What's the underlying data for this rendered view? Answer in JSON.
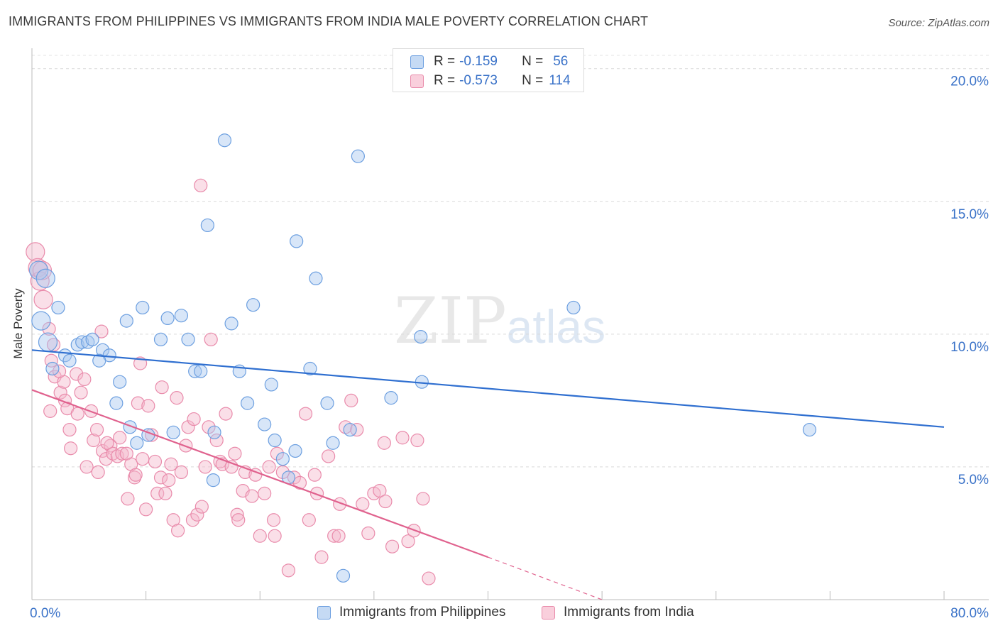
{
  "header": {
    "title": "IMMIGRANTS FROM PHILIPPINES VS IMMIGRANTS FROM INDIA MALE POVERTY CORRELATION CHART",
    "source": "Source: ZipAtlas.com"
  },
  "watermark": {
    "zip": "ZIP",
    "atlas": "atlas"
  },
  "legend": {
    "philippines": {
      "r_label": "R =",
      "r_value": "-0.159",
      "n_label": "N =",
      "n_value": "56"
    },
    "india": {
      "r_label": "R =",
      "r_value": "-0.573",
      "n_label": "N =",
      "n_value": "114"
    }
  },
  "colors": {
    "philippines_fill": "#a9c8ef",
    "philippines_stroke": "#6c9fe0",
    "philippines_line": "#2f6fd0",
    "india_fill": "#f5b8cb",
    "india_stroke": "#e98bab",
    "india_line": "#e0628e",
    "axis_text": "#3a72c8"
  },
  "chart_data": {
    "type": "scatter",
    "title": "IMMIGRANTS FROM PHILIPPINES VS IMMIGRANTS FROM INDIA MALE POVERTY CORRELATION CHART",
    "xlabel": "",
    "ylabel": "Male Poverty",
    "xlim": [
      0,
      80
    ],
    "ylim": [
      0,
      20.5
    ],
    "x_tick_labels": [
      "0.0%",
      "80.0%"
    ],
    "y_ticks": [
      5,
      10,
      15,
      20
    ],
    "y_tick_labels": [
      "5.0%",
      "10.0%",
      "15.0%",
      "20.0%"
    ],
    "grid": true,
    "legend_position": "bottom",
    "series": [
      {
        "name": "Immigrants from Philippines",
        "color": "#a9c8ef",
        "trend": {
          "x": [
            0,
            80
          ],
          "y": [
            9.4,
            6.5
          ]
        },
        "points": [
          [
            0.6,
            12.4
          ],
          [
            0.8,
            10.5
          ],
          [
            1.4,
            9.7
          ],
          [
            1.8,
            8.7
          ],
          [
            2.3,
            11.0
          ],
          [
            2.9,
            9.2
          ],
          [
            3.3,
            9.0
          ],
          [
            4.0,
            9.6
          ],
          [
            4.4,
            9.7
          ],
          [
            4.9,
            9.7
          ],
          [
            5.3,
            9.8
          ],
          [
            6.2,
            9.4
          ],
          [
            6.8,
            9.2
          ],
          [
            5.9,
            9.0
          ],
          [
            7.7,
            8.2
          ],
          [
            7.4,
            7.4
          ],
          [
            8.3,
            10.5
          ],
          [
            8.6,
            6.5
          ],
          [
            9.2,
            5.9
          ],
          [
            9.7,
            11.0
          ],
          [
            10.2,
            6.2
          ],
          [
            11.3,
            9.8
          ],
          [
            11.9,
            10.6
          ],
          [
            12.4,
            6.3
          ],
          [
            13.1,
            10.7
          ],
          [
            13.7,
            9.8
          ],
          [
            14.3,
            8.6
          ],
          [
            14.8,
            8.6
          ],
          [
            15.4,
            14.1
          ],
          [
            16.0,
            6.3
          ],
          [
            15.9,
            4.5
          ],
          [
            16.9,
            17.3
          ],
          [
            17.5,
            10.4
          ],
          [
            18.2,
            8.6
          ],
          [
            18.9,
            7.4
          ],
          [
            19.4,
            11.1
          ],
          [
            20.4,
            6.6
          ],
          [
            21.0,
            8.1
          ],
          [
            21.3,
            6.0
          ],
          [
            22.0,
            5.3
          ],
          [
            23.1,
            5.6
          ],
          [
            22.5,
            4.6
          ],
          [
            23.2,
            13.5
          ],
          [
            24.4,
            8.7
          ],
          [
            24.9,
            12.1
          ],
          [
            25.9,
            7.4
          ],
          [
            26.4,
            5.9
          ],
          [
            27.3,
            0.9
          ],
          [
            27.9,
            6.4
          ],
          [
            28.6,
            16.7
          ],
          [
            31.5,
            7.6
          ],
          [
            34.1,
            9.9
          ],
          [
            34.2,
            8.2
          ],
          [
            47.5,
            11.0
          ],
          [
            68.2,
            6.4
          ],
          [
            1.2,
            12.1
          ]
        ]
      },
      {
        "name": "Immigrants from India",
        "color": "#f5b8cb",
        "trend": {
          "x": [
            0,
            40
          ],
          "y": [
            7.9,
            1.6
          ]
        },
        "trend_dashed": {
          "x": [
            40,
            50
          ],
          "y": [
            1.6,
            0.0
          ]
        },
        "points": [
          [
            0.3,
            13.1
          ],
          [
            0.5,
            12.5
          ],
          [
            0.7,
            12.0
          ],
          [
            1.0,
            11.3
          ],
          [
            1.5,
            10.2
          ],
          [
            1.7,
            9.0
          ],
          [
            2.0,
            8.4
          ],
          [
            1.9,
            9.6
          ],
          [
            2.5,
            7.8
          ],
          [
            2.8,
            8.2
          ],
          [
            2.9,
            7.5
          ],
          [
            3.1,
            7.2
          ],
          [
            3.3,
            6.4
          ],
          [
            3.4,
            5.7
          ],
          [
            3.9,
            8.5
          ],
          [
            4.0,
            7.0
          ],
          [
            4.3,
            7.8
          ],
          [
            4.6,
            8.3
          ],
          [
            4.8,
            5.0
          ],
          [
            5.2,
            7.1
          ],
          [
            5.4,
            6.0
          ],
          [
            5.7,
            6.4
          ],
          [
            5.8,
            4.8
          ],
          [
            6.1,
            10.1
          ],
          [
            6.2,
            5.6
          ],
          [
            6.5,
            5.3
          ],
          [
            6.9,
            5.8
          ],
          [
            7.1,
            5.5
          ],
          [
            7.5,
            5.4
          ],
          [
            7.7,
            6.1
          ],
          [
            7.9,
            5.5
          ],
          [
            8.3,
            5.5
          ],
          [
            8.4,
            3.8
          ],
          [
            8.7,
            5.1
          ],
          [
            9.0,
            4.6
          ],
          [
            9.3,
            7.4
          ],
          [
            9.5,
            8.9
          ],
          [
            9.7,
            5.3
          ],
          [
            10.0,
            3.4
          ],
          [
            10.2,
            7.3
          ],
          [
            10.5,
            6.2
          ],
          [
            10.8,
            5.2
          ],
          [
            11.0,
            4.0
          ],
          [
            11.3,
            4.6
          ],
          [
            11.4,
            8.0
          ],
          [
            11.7,
            4.0
          ],
          [
            12.0,
            4.5
          ],
          [
            12.2,
            5.1
          ],
          [
            12.4,
            3.0
          ],
          [
            12.7,
            7.6
          ],
          [
            12.8,
            2.6
          ],
          [
            13.1,
            4.8
          ],
          [
            13.5,
            5.8
          ],
          [
            13.7,
            6.5
          ],
          [
            14.1,
            3.0
          ],
          [
            14.2,
            6.8
          ],
          [
            14.5,
            3.2
          ],
          [
            14.9,
            3.5
          ],
          [
            15.2,
            5.0
          ],
          [
            15.5,
            6.5
          ],
          [
            15.7,
            9.8
          ],
          [
            16.2,
            6.0
          ],
          [
            16.5,
            5.2
          ],
          [
            16.7,
            5.1
          ],
          [
            17.0,
            7.0
          ],
          [
            17.5,
            5.0
          ],
          [
            17.8,
            5.5
          ],
          [
            18.0,
            3.2
          ],
          [
            18.5,
            4.1
          ],
          [
            18.7,
            4.8
          ],
          [
            19.3,
            3.9
          ],
          [
            19.6,
            4.7
          ],
          [
            20.0,
            2.4
          ],
          [
            20.4,
            4.0
          ],
          [
            20.8,
            5.0
          ],
          [
            21.3,
            2.4
          ],
          [
            21.5,
            5.5
          ],
          [
            22.0,
            4.8
          ],
          [
            22.5,
            1.1
          ],
          [
            23.0,
            4.6
          ],
          [
            23.5,
            4.4
          ],
          [
            24.0,
            7.0
          ],
          [
            24.3,
            3.0
          ],
          [
            24.8,
            4.7
          ],
          [
            25.0,
            4.0
          ],
          [
            25.4,
            1.6
          ],
          [
            26.0,
            5.4
          ],
          [
            26.5,
            2.4
          ],
          [
            27.0,
            3.6
          ],
          [
            27.5,
            6.5
          ],
          [
            28.0,
            7.5
          ],
          [
            28.5,
            6.4
          ],
          [
            29.0,
            3.6
          ],
          [
            29.5,
            2.5
          ],
          [
            30.0,
            4.0
          ],
          [
            30.5,
            4.1
          ],
          [
            31.0,
            3.7
          ],
          [
            31.6,
            2.0
          ],
          [
            32.5,
            6.1
          ],
          [
            33.0,
            2.2
          ],
          [
            33.5,
            2.6
          ],
          [
            33.8,
            6.0
          ],
          [
            34.3,
            3.8
          ],
          [
            34.8,
            0.8
          ],
          [
            14.8,
            15.6
          ],
          [
            0.9,
            12.4
          ],
          [
            2.4,
            8.6
          ],
          [
            6.6,
            5.9
          ],
          [
            9.1,
            4.7
          ],
          [
            18.1,
            3.0
          ],
          [
            21.2,
            3.0
          ],
          [
            26.9,
            2.4
          ],
          [
            30.9,
            5.9
          ],
          [
            1.6,
            7.1
          ]
        ]
      }
    ]
  }
}
